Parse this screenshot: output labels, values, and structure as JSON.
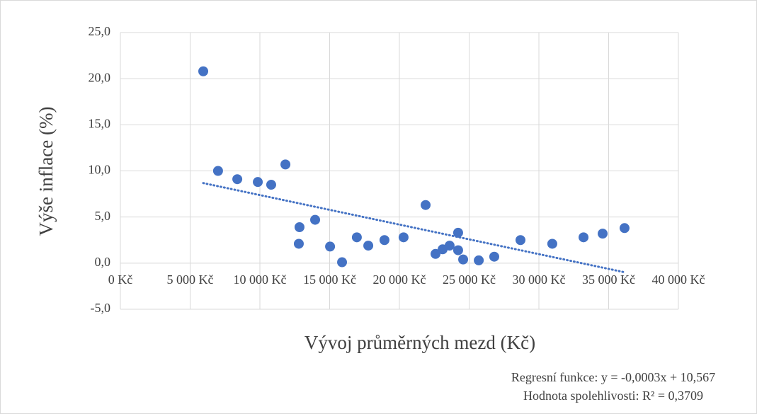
{
  "chart_data": {
    "type": "scatter",
    "x_label": "Vývoj průměrných mezd (Kč)",
    "y_label": "Výše inflace (%)",
    "series": [
      {
        "color": "#4472c4",
        "x": [
          5940,
          7000,
          8380,
          9850,
          10810,
          11830,
          12840,
          12790,
          13960,
          15030,
          15890,
          16950,
          17770,
          18930,
          20300,
          21880,
          22590,
          23100,
          23600,
          24210,
          24210,
          24570,
          25690,
          26800,
          28680,
          30960,
          33200,
          34570,
          36140
        ],
        "values": [
          20.8,
          10.0,
          9.1,
          8.8,
          8.5,
          10.7,
          3.9,
          2.1,
          4.7,
          1.8,
          0.1,
          2.8,
          1.9,
          2.5,
          2.8,
          6.3,
          1.0,
          1.5,
          1.9,
          3.3,
          1.4,
          0.4,
          0.3,
          0.7,
          2.5,
          2.1,
          2.8,
          3.2,
          3.8
        ]
      }
    ],
    "trendline": true,
    "xlim": [
      0,
      40000
    ],
    "ylim": [
      -5,
      25
    ],
    "xticks": [
      {
        "value": 0,
        "label": "0 Kč"
      },
      {
        "value": 5000,
        "label": "5 000 Kč"
      },
      {
        "value": 10000,
        "label": "10 000 Kč"
      },
      {
        "value": 15000,
        "label": "15 000 Kč"
      },
      {
        "value": 20000,
        "label": "20 000 Kč"
      },
      {
        "value": 25000,
        "label": "25 000 Kč"
      },
      {
        "value": 30000,
        "label": "30 000 Kč"
      },
      {
        "value": 35000,
        "label": "35 000 Kč"
      },
      {
        "value": 40000,
        "label": "40 000 Kč"
      }
    ],
    "yticks": [
      {
        "value": -5,
        "label": "-5,0"
      },
      {
        "value": 0,
        "label": "0,0"
      },
      {
        "value": 5,
        "label": "5,0"
      },
      {
        "value": 10,
        "label": "10,0"
      },
      {
        "value": 15,
        "label": "15,0"
      },
      {
        "value": 20,
        "label": "20,0"
      },
      {
        "value": 25,
        "label": "25,0"
      }
    ],
    "grid": true,
    "annotations": [
      "Regresní funkce: y = -0,0003x + 10,567",
      "Hodnota spolehlivosti: R² = 0,3709"
    ]
  }
}
